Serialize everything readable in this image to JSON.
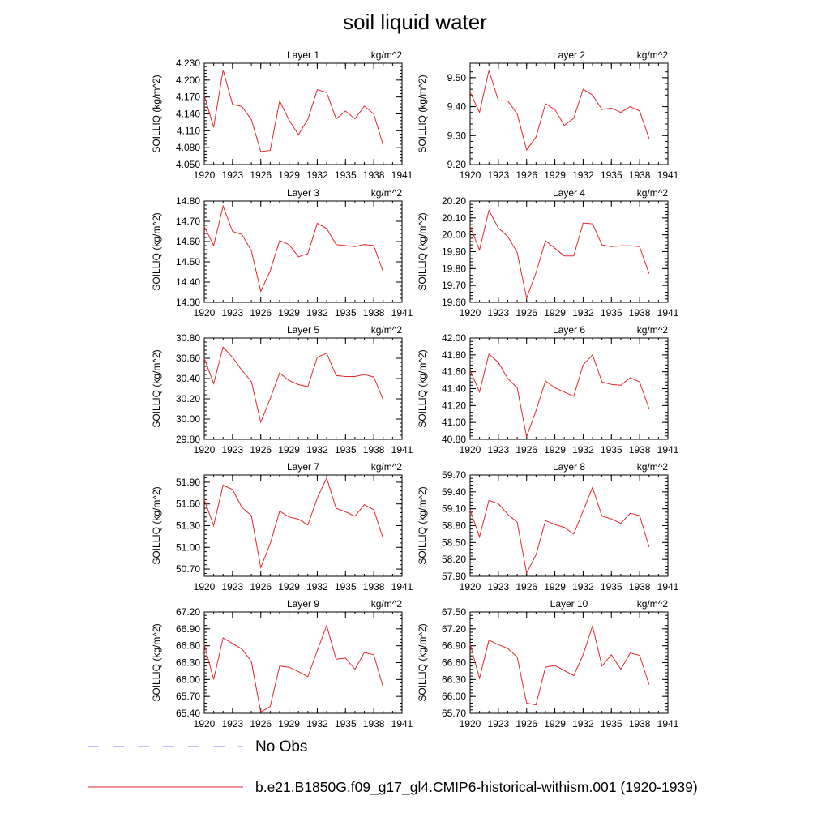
{
  "figure": {
    "title": "soil liquid water",
    "legend": [
      {
        "label": "No Obs",
        "color": "#8080ff",
        "style": "dashed"
      },
      {
        "label": "b.e21.B1850G.f09_g17_gl4.CMIP6-historical-withism.001 (1920-1939)",
        "color": "#e8262b",
        "style": "solid"
      }
    ]
  },
  "chart_data": [
    {
      "type": "line",
      "title": "Layer 1",
      "units": "kg/m^2",
      "ylabel": "SOILLIQ  (kg/m^2)",
      "xlim": [
        1920,
        1941
      ],
      "xticks": [
        1920,
        1923,
        1926,
        1929,
        1932,
        1935,
        1938,
        1941
      ],
      "ylim": [
        4.05,
        4.23
      ],
      "yticks": [
        "4.050",
        "4.080",
        "4.110",
        "4.140",
        "4.170",
        "4.200",
        "4.230"
      ],
      "x": [
        1920,
        1921,
        1922,
        1923,
        1924,
        1925,
        1926,
        1927,
        1928,
        1929,
        1930,
        1931,
        1932,
        1933,
        1934,
        1935,
        1936,
        1937,
        1938,
        1939
      ],
      "series": [
        {
          "values": [
            4.173,
            4.116,
            4.218,
            4.157,
            4.153,
            4.13,
            4.073,
            4.075,
            4.163,
            4.129,
            4.103,
            4.13,
            4.183,
            4.178,
            4.131,
            4.145,
            4.131,
            4.154,
            4.14,
            4.084
          ]
        }
      ]
    },
    {
      "type": "line",
      "title": "Layer 2",
      "units": "kg/m^2",
      "ylabel": "SOILLIQ  (kg/m^2)",
      "xlim": [
        1920,
        1941
      ],
      "xticks": [
        1920,
        1923,
        1926,
        1929,
        1932,
        1935,
        1938,
        1941
      ],
      "ylim": [
        9.2,
        9.55
      ],
      "yticks": [
        "9.20",
        "9.30",
        "9.40",
        "9.50"
      ],
      "x": [
        1920,
        1921,
        1922,
        1923,
        1924,
        1925,
        1926,
        1927,
        1928,
        1929,
        1930,
        1931,
        1932,
        1933,
        1934,
        1935,
        1936,
        1937,
        1938,
        1939
      ],
      "series": [
        {
          "values": [
            9.45,
            9.38,
            9.525,
            9.42,
            9.42,
            9.375,
            9.25,
            9.295,
            9.41,
            9.39,
            9.335,
            9.36,
            9.46,
            9.44,
            9.39,
            9.395,
            9.38,
            9.4,
            9.385,
            9.29
          ]
        }
      ]
    },
    {
      "type": "line",
      "title": "Layer 3",
      "units": "kg/m^2",
      "ylabel": "SOILLIQ  (kg/m^2)",
      "xlim": [
        1920,
        1941
      ],
      "xticks": [
        1920,
        1923,
        1926,
        1929,
        1932,
        1935,
        1938,
        1941
      ],
      "ylim": [
        14.3,
        14.8
      ],
      "yticks": [
        "14.30",
        "14.40",
        "14.50",
        "14.60",
        "14.70",
        "14.80"
      ],
      "x": [
        1920,
        1921,
        1922,
        1923,
        1924,
        1925,
        1926,
        1927,
        1928,
        1929,
        1930,
        1931,
        1932,
        1933,
        1934,
        1935,
        1936,
        1937,
        1938,
        1939
      ],
      "series": [
        {
          "values": [
            14.675,
            14.58,
            14.775,
            14.65,
            14.635,
            14.555,
            14.355,
            14.455,
            14.605,
            14.585,
            14.525,
            14.54,
            14.69,
            14.665,
            14.585,
            14.58,
            14.575,
            14.585,
            14.58,
            14.45
          ]
        }
      ]
    },
    {
      "type": "line",
      "title": "Layer 4",
      "units": "kg/m^2",
      "ylabel": "SOILLIQ  (kg/m^2)",
      "xlim": [
        1920,
        1941
      ],
      "xticks": [
        1920,
        1923,
        1926,
        1929,
        1932,
        1935,
        1938,
        1941
      ],
      "ylim": [
        19.6,
        20.2
      ],
      "yticks": [
        "19.60",
        "19.70",
        "19.80",
        "19.90",
        "20.00",
        "20.10",
        "20.20"
      ],
      "x": [
        1920,
        1921,
        1922,
        1923,
        1924,
        1925,
        1926,
        1927,
        1928,
        1929,
        1930,
        1931,
        1932,
        1933,
        1934,
        1935,
        1936,
        1937,
        1938,
        1939
      ],
      "series": [
        {
          "values": [
            20.05,
            19.91,
            20.145,
            20.04,
            19.99,
            19.895,
            19.625,
            19.775,
            19.965,
            19.92,
            19.875,
            19.875,
            20.07,
            20.065,
            19.94,
            19.93,
            19.935,
            19.935,
            19.93,
            19.77
          ]
        }
      ]
    },
    {
      "type": "line",
      "title": "Layer 5",
      "units": "kg/m^2",
      "ylabel": "SOILLIQ  (kg/m^2)",
      "xlim": [
        1920,
        1941
      ],
      "xticks": [
        1920,
        1923,
        1926,
        1929,
        1932,
        1935,
        1938,
        1941
      ],
      "ylim": [
        29.8,
        30.8
      ],
      "yticks": [
        "29.80",
        "30.00",
        "30.20",
        "30.40",
        "30.60",
        "30.80"
      ],
      "x": [
        1920,
        1921,
        1922,
        1923,
        1924,
        1925,
        1926,
        1927,
        1928,
        1929,
        1930,
        1931,
        1932,
        1933,
        1934,
        1935,
        1936,
        1937,
        1938,
        1939
      ],
      "series": [
        {
          "values": [
            30.6,
            30.35,
            30.71,
            30.61,
            30.48,
            30.37,
            29.97,
            30.2,
            30.455,
            30.38,
            30.34,
            30.32,
            30.61,
            30.65,
            30.43,
            30.42,
            30.42,
            30.44,
            30.415,
            30.19
          ]
        }
      ]
    },
    {
      "type": "line",
      "title": "Layer 6",
      "units": "kg/m^2",
      "ylabel": "SOILLIQ  (kg/m^2)",
      "xlim": [
        1920,
        1941
      ],
      "xticks": [
        1920,
        1923,
        1926,
        1929,
        1932,
        1935,
        1938,
        1941
      ],
      "ylim": [
        40.8,
        42.0
      ],
      "yticks": [
        "40.80",
        "41.00",
        "41.20",
        "41.40",
        "41.60",
        "41.80",
        "42.00"
      ],
      "x": [
        1920,
        1921,
        1922,
        1923,
        1924,
        1925,
        1926,
        1927,
        1928,
        1929,
        1930,
        1931,
        1932,
        1933,
        1934,
        1935,
        1936,
        1937,
        1938,
        1939
      ],
      "series": [
        {
          "values": [
            41.62,
            41.36,
            41.81,
            41.71,
            41.52,
            41.41,
            40.83,
            41.14,
            41.49,
            41.41,
            41.36,
            41.31,
            41.68,
            41.8,
            41.48,
            41.45,
            41.44,
            41.53,
            41.48,
            41.16
          ]
        }
      ]
    },
    {
      "type": "line",
      "title": "Layer 7",
      "units": "kg/m^2",
      "ylabel": "SOILLIQ  (kg/m^2)",
      "xlim": [
        1920,
        1941
      ],
      "xticks": [
        1920,
        1923,
        1926,
        1929,
        1932,
        1935,
        1938,
        1941
      ],
      "ylim": [
        50.6,
        52.0
      ],
      "yticks": [
        "50.70",
        "51.00",
        "51.30",
        "51.60",
        "51.90"
      ],
      "x": [
        1920,
        1921,
        1922,
        1923,
        1924,
        1925,
        1926,
        1927,
        1928,
        1929,
        1930,
        1931,
        1932,
        1933,
        1934,
        1935,
        1936,
        1937,
        1938,
        1939
      ],
      "series": [
        {
          "values": [
            51.66,
            51.3,
            51.86,
            51.8,
            51.55,
            51.44,
            50.72,
            51.05,
            51.5,
            51.42,
            51.39,
            51.31,
            51.68,
            51.96,
            51.54,
            51.49,
            51.43,
            51.59,
            51.52,
            51.12
          ]
        }
      ]
    },
    {
      "type": "line",
      "title": "Layer 8",
      "units": "kg/m^2",
      "ylabel": "SOILLIQ  (kg/m^2)",
      "xlim": [
        1920,
        1941
      ],
      "xticks": [
        1920,
        1923,
        1926,
        1929,
        1932,
        1935,
        1938,
        1941
      ],
      "ylim": [
        57.9,
        59.7
      ],
      "yticks": [
        "57.90",
        "58.20",
        "58.50",
        "58.80",
        "59.10",
        "59.40",
        "59.70"
      ],
      "x": [
        1920,
        1921,
        1922,
        1923,
        1924,
        1925,
        1926,
        1927,
        1928,
        1929,
        1930,
        1931,
        1932,
        1933,
        1934,
        1935,
        1936,
        1937,
        1938,
        1939
      ],
      "series": [
        {
          "values": [
            59.08,
            58.6,
            59.25,
            59.19,
            59.0,
            58.86,
            57.96,
            58.28,
            58.89,
            58.82,
            58.77,
            58.65,
            59.06,
            59.48,
            58.97,
            58.92,
            58.84,
            59.02,
            58.98,
            58.42
          ]
        }
      ]
    },
    {
      "type": "line",
      "title": "Layer 9",
      "units": "kg/m^2",
      "ylabel": "SOILLIQ  (kg/m^2)",
      "xlim": [
        1920,
        1941
      ],
      "xticks": [
        1920,
        1923,
        1926,
        1929,
        1932,
        1935,
        1938,
        1941
      ],
      "ylim": [
        65.4,
        67.2
      ],
      "yticks": [
        "65.40",
        "65.70",
        "66.00",
        "66.30",
        "66.60",
        "66.90",
        "67.20"
      ],
      "x": [
        1920,
        1921,
        1922,
        1923,
        1924,
        1925,
        1926,
        1927,
        1928,
        1929,
        1930,
        1931,
        1932,
        1933,
        1934,
        1935,
        1936,
        1937,
        1938,
        1939
      ],
      "series": [
        {
          "values": [
            66.62,
            66.0,
            66.74,
            66.64,
            66.54,
            66.32,
            65.42,
            65.52,
            66.24,
            66.22,
            66.14,
            66.05,
            66.51,
            66.96,
            66.36,
            66.38,
            66.18,
            66.48,
            66.44,
            65.86
          ]
        }
      ]
    },
    {
      "type": "line",
      "title": "Layer 10",
      "units": "kg/m^2",
      "ylabel": "SOILLIQ  (kg/m^2)",
      "xlim": [
        1920,
        1941
      ],
      "xticks": [
        1920,
        1923,
        1926,
        1929,
        1932,
        1935,
        1938,
        1941
      ],
      "ylim": [
        65.7,
        67.5
      ],
      "yticks": [
        "65.70",
        "66.00",
        "66.30",
        "66.60",
        "66.90",
        "67.20",
        "67.50"
      ],
      "x": [
        1920,
        1921,
        1922,
        1923,
        1924,
        1925,
        1926,
        1927,
        1928,
        1929,
        1930,
        1931,
        1932,
        1933,
        1934,
        1935,
        1936,
        1937,
        1938,
        1939
      ],
      "series": [
        {
          "values": [
            66.93,
            66.32,
            67.0,
            66.92,
            66.85,
            66.7,
            65.88,
            65.85,
            66.52,
            66.55,
            66.46,
            66.37,
            66.74,
            67.25,
            66.54,
            66.74,
            66.48,
            66.77,
            66.73,
            66.21
          ]
        }
      ]
    }
  ]
}
